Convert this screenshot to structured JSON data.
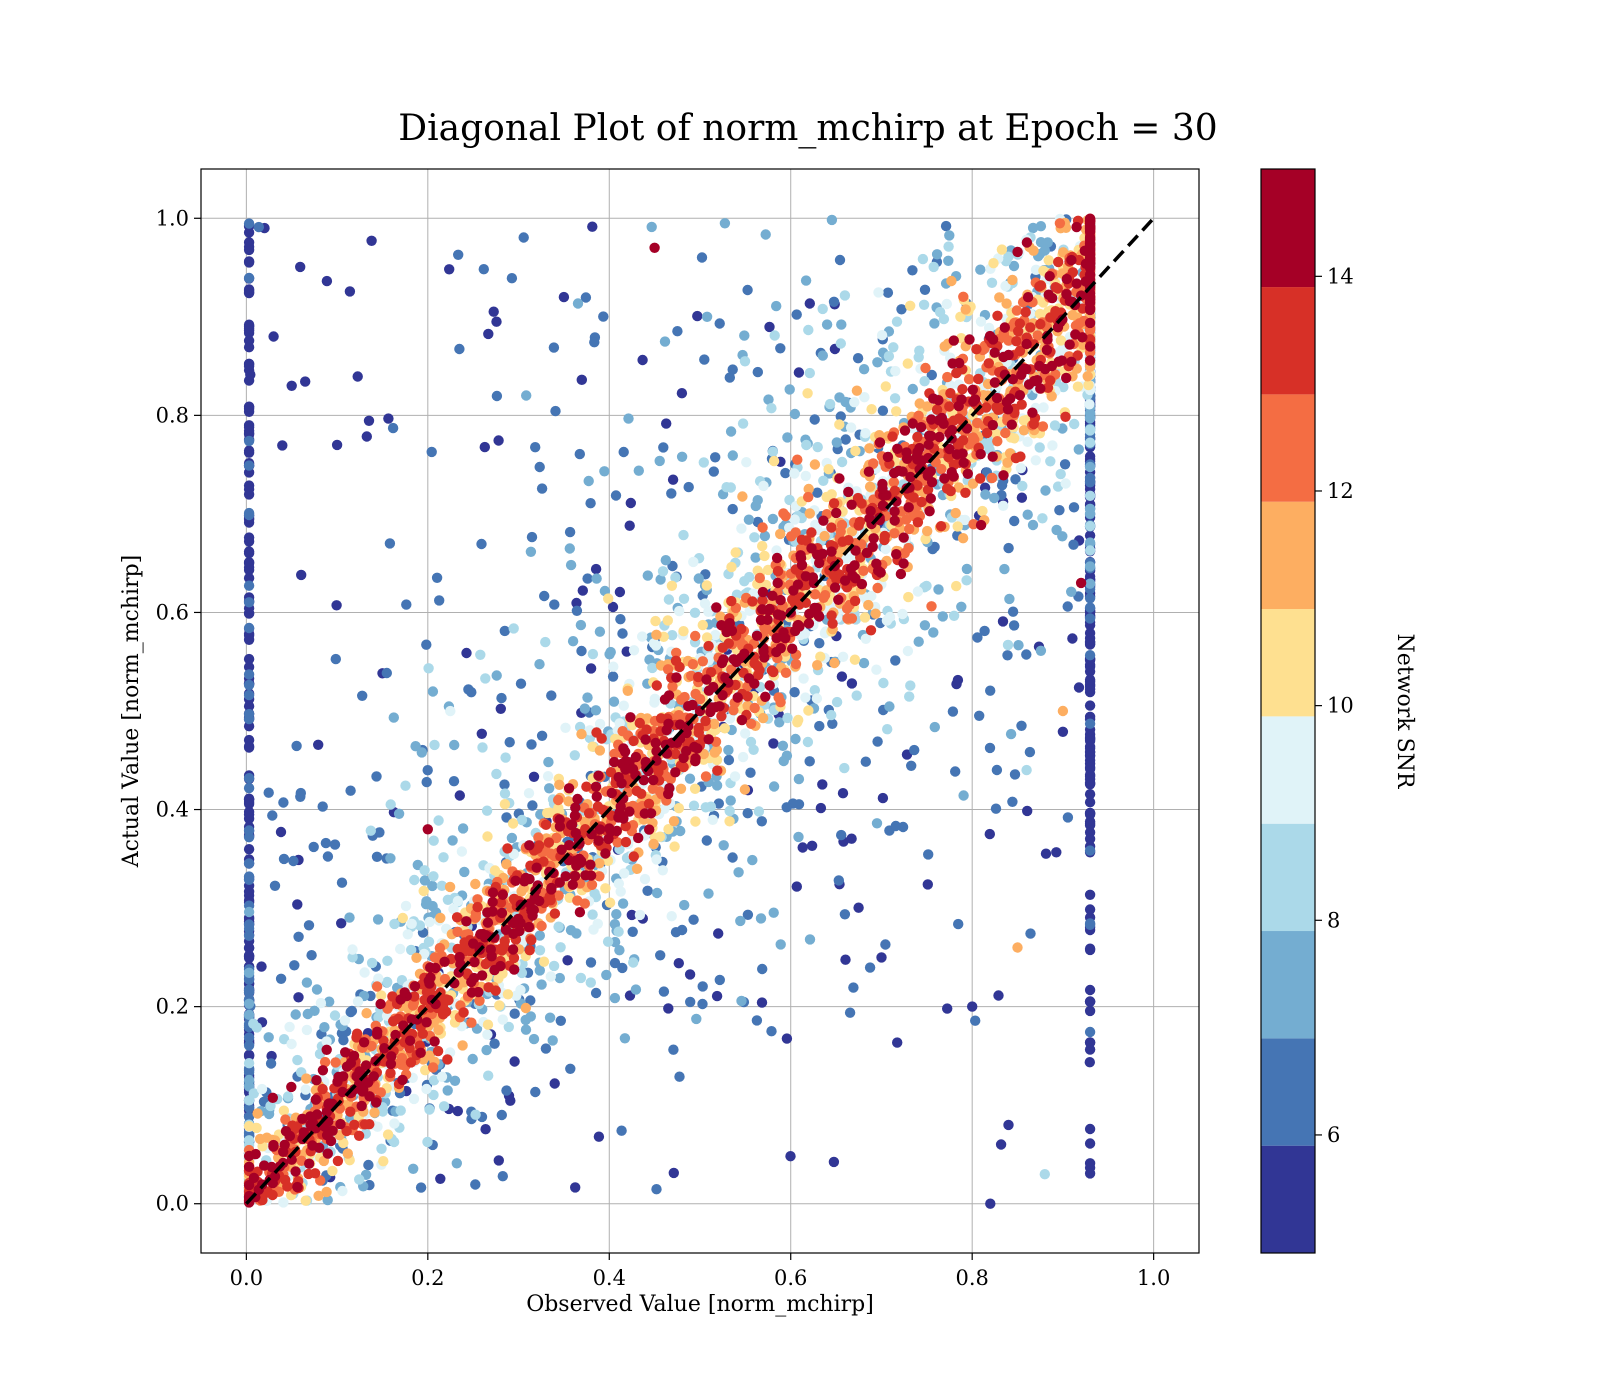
{
  "chart_data": {
    "type": "scatter",
    "title": "Diagonal Plot of norm_mchirp at Epoch = 30",
    "xlabel": "Observed Value [norm_mchirp]",
    "ylabel": "Actual Value [norm_mchirp]",
    "xlim": [
      -0.05,
      1.05
    ],
    "ylim": [
      -0.05,
      1.05
    ],
    "xticks": [
      "0.0",
      "0.2",
      "0.4",
      "0.6",
      "0.8",
      "1.0"
    ],
    "yticks": [
      "0.0",
      "0.2",
      "0.4",
      "0.6",
      "0.8",
      "1.0"
    ],
    "grid": true,
    "reference_line": {
      "style": "dashed",
      "color": "#000000",
      "from": [
        0,
        0
      ],
      "to": [
        1,
        1
      ]
    },
    "point_cloud": {
      "description_of_distribution": "high-SNR points concentrated along diagonal; low-SNR points scattered widely",
      "x_range_of_points": [
        0.0,
        0.93
      ],
      "y_range_of_points": [
        0.0,
        1.0
      ],
      "sample_points": [
        {
          "x": 0.02,
          "y": 0.99,
          "snr": 5.2
        },
        {
          "x": 0.03,
          "y": 0.88,
          "snr": 5.1
        },
        {
          "x": 0.05,
          "y": 0.83,
          "snr": 5.3
        },
        {
          "x": 0.1,
          "y": 0.77,
          "snr": 5.2
        },
        {
          "x": 0.2,
          "y": 0.38,
          "snr": 14.8
        },
        {
          "x": 0.35,
          "y": 0.92,
          "snr": 5.4
        },
        {
          "x": 0.45,
          "y": 0.97,
          "snr": 14.5
        },
        {
          "x": 0.5,
          "y": 0.5,
          "snr": 14.9
        },
        {
          "x": 0.6,
          "y": 0.6,
          "snr": 14.9
        },
        {
          "x": 0.7,
          "y": 0.25,
          "snr": 5.5
        },
        {
          "x": 0.8,
          "y": 0.2,
          "snr": 5.3
        },
        {
          "x": 0.82,
          "y": 0.0,
          "snr": 5.2
        },
        {
          "x": 0.84,
          "y": 0.08,
          "snr": 5.1
        },
        {
          "x": 0.85,
          "y": 0.26,
          "snr": 11.6
        },
        {
          "x": 0.86,
          "y": 0.44,
          "snr": 8.6
        },
        {
          "x": 0.88,
          "y": 0.03,
          "snr": 8.2
        },
        {
          "x": 0.9,
          "y": 0.5,
          "snr": 11.2
        },
        {
          "x": 0.92,
          "y": 0.63,
          "snr": 14.6
        },
        {
          "x": 0.93,
          "y": 0.87,
          "snr": 14.9
        }
      ]
    },
    "colorbar": {
      "label": "Network SNR",
      "range": [
        4.9,
        15.0
      ],
      "ticks": [
        "6",
        "8",
        "10",
        "12",
        "14"
      ],
      "tick_values": [
        6,
        8,
        10,
        12,
        14
      ],
      "bins": [
        4.9,
        5.9,
        6.9,
        7.9,
        8.9,
        9.9,
        10.9,
        11.9,
        12.9,
        13.9,
        15.0
      ],
      "colors": [
        "#313695",
        "#4575b4",
        "#74add1",
        "#abd9e9",
        "#e0f3f8",
        "#fee090",
        "#fdae61",
        "#f46d43",
        "#d73027",
        "#a50026"
      ]
    }
  }
}
